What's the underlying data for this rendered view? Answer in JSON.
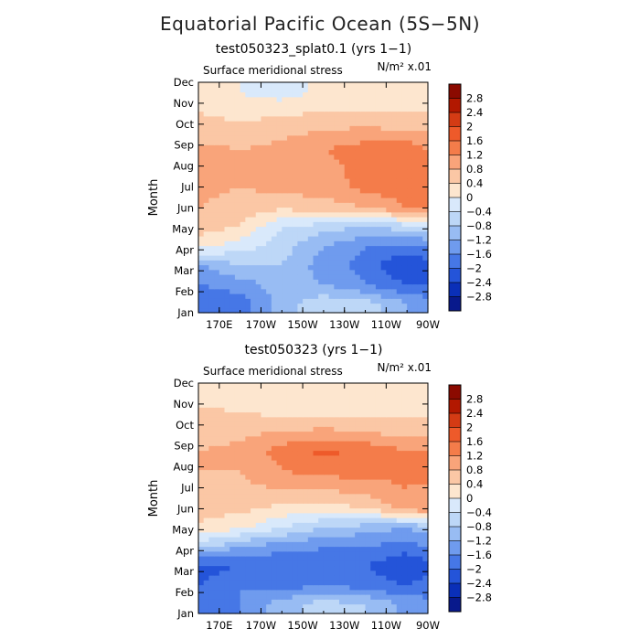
{
  "main_title": "Equatorial Pacific Ocean (5S−5N)",
  "colors": {
    "levels": [
      "#8b0a00",
      "#b21800",
      "#d43b14",
      "#ee5a2a",
      "#f47c4a",
      "#f9a47a",
      "#fbc7a5",
      "#fde6cf",
      "#d9e9fb",
      "#bdd7f7",
      "#98bcf3",
      "#6f9bee",
      "#4677e6",
      "#2454d9",
      "#0a2fb8",
      "#08198c"
    ]
  },
  "chart_data": [
    {
      "type": "heatmap",
      "title": "test050323_splat0.1 (yrs 1−1)",
      "field_label": "Surface meridional stress",
      "units_label": "N/m² x.01",
      "xlabel": "",
      "ylabel": "Month",
      "x_ticks": [
        "170E",
        "170W",
        "150W",
        "130W",
        "110W",
        "90W"
      ],
      "x_tick_lon": [
        170,
        190,
        210,
        230,
        250,
        270
      ],
      "x_range": [
        160,
        270
      ],
      "y_ticks": [
        "Jan",
        "Feb",
        "Mar",
        "Apr",
        "May",
        "Jun",
        "Jul",
        "Aug",
        "Sep",
        "Oct",
        "Nov",
        "Dec"
      ],
      "colorbar_labels": [
        "2.8",
        "2.4",
        "2",
        "1.6",
        "1.2",
        "0.8",
        "0.4",
        "0",
        "−0.4",
        "−0.8",
        "−1.2",
        "−1.6",
        "−2",
        "−2.4",
        "−2.8"
      ],
      "contour_levels": [
        -2.8,
        -2.4,
        -2,
        -1.6,
        -1.2,
        -0.8,
        -0.4,
        0,
        0.4,
        0.8,
        1.2,
        1.6,
        2,
        2.4,
        2.8
      ],
      "lon": [
        160,
        180,
        200,
        220,
        240,
        260,
        270
      ],
      "values": [
        [
          -2.0,
          -1.8,
          -1.0,
          -0.5,
          -0.6,
          -1.2,
          -1.4
        ],
        [
          -1.6,
          -1.4,
          -1.0,
          -1.2,
          -1.6,
          -2.0,
          -2.0
        ],
        [
          -1.3,
          -0.8,
          -0.8,
          -1.4,
          -1.8,
          -2.4,
          -2.2
        ],
        [
          0.2,
          -0.2,
          -0.6,
          -1.2,
          -1.6,
          -1.7,
          -1.6
        ],
        [
          0.6,
          0.4,
          -0.4,
          -0.6,
          -0.8,
          -0.6,
          -0.4
        ],
        [
          0.8,
          0.6,
          0.5,
          0.6,
          0.8,
          1.2,
          1.4
        ],
        [
          0.9,
          0.8,
          0.9,
          1.0,
          1.3,
          1.4,
          1.2
        ],
        [
          0.9,
          0.8,
          0.8,
          1.0,
          1.4,
          1.3,
          1.2
        ],
        [
          0.9,
          0.8,
          0.9,
          1.2,
          1.4,
          1.5,
          1.2
        ],
        [
          0.6,
          0.6,
          0.7,
          0.8,
          0.9,
          0.8,
          0.8
        ],
        [
          0.4,
          0.2,
          0.3,
          0.4,
          0.4,
          0.4,
          0.4
        ],
        [
          0.1,
          0.0,
          -0.2,
          0.1,
          0.3,
          0.3,
          0.2
        ]
      ]
    },
    {
      "type": "heatmap",
      "title": "test050323 (yrs 1−1)",
      "field_label": "Surface meridional stress",
      "units_label": "N/m² x.01",
      "xlabel": "",
      "ylabel": "Month",
      "x_ticks": [
        "170E",
        "170W",
        "150W",
        "130W",
        "110W",
        "90W"
      ],
      "x_tick_lon": [
        170,
        190,
        210,
        230,
        250,
        270
      ],
      "x_range": [
        160,
        270
      ],
      "y_ticks": [
        "Jan",
        "Feb",
        "Mar",
        "Apr",
        "May",
        "Jun",
        "Jul",
        "Aug",
        "Sep",
        "Oct",
        "Nov",
        "Dec"
      ],
      "colorbar_labels": [
        "2.8",
        "2.4",
        "2",
        "1.6",
        "1.2",
        "0.8",
        "0.4",
        "0",
        "−0.4",
        "−0.8",
        "−1.2",
        "−1.6",
        "−2",
        "−2.4",
        "−2.8"
      ],
      "contour_levels": [
        -2.8,
        -2.4,
        -2,
        -1.6,
        -1.2,
        -0.8,
        -0.4,
        0,
        0.4,
        0.8,
        1.2,
        1.6,
        2,
        2.4,
        2.8
      ],
      "lon": [
        160,
        180,
        200,
        220,
        240,
        260,
        270
      ],
      "values": [
        [
          -1.8,
          -1.6,
          -1.0,
          -0.6,
          -0.8,
          -1.3,
          -1.5
        ],
        [
          -2.0,
          -1.6,
          -1.8,
          -1.6,
          -1.8,
          -2.0,
          -1.8
        ],
        [
          -2.2,
          -2.0,
          -2.0,
          -1.8,
          -2.0,
          -2.4,
          -2.2
        ],
        [
          -0.6,
          -1.2,
          -1.4,
          -1.6,
          -1.6,
          -1.8,
          -1.6
        ],
        [
          0.3,
          0.1,
          -0.4,
          -0.8,
          -1.0,
          -1.2,
          -1.0
        ],
        [
          0.6,
          0.5,
          0.3,
          0.2,
          0.4,
          1.0,
          1.2
        ],
        [
          0.7,
          0.7,
          0.8,
          0.8,
          1.0,
          1.2,
          1.0
        ],
        [
          0.8,
          0.8,
          1.2,
          1.4,
          1.4,
          1.3,
          1.6
        ],
        [
          0.8,
          0.9,
          1.4,
          1.7,
          1.5,
          1.2,
          1.2
        ],
        [
          0.6,
          0.7,
          0.8,
          0.9,
          0.8,
          0.6,
          0.6
        ],
        [
          0.5,
          0.4,
          0.3,
          0.3,
          0.3,
          0.3,
          0.3
        ],
        [
          0.2,
          0.1,
          0.1,
          0.0,
          0.0,
          0.1,
          0.1
        ]
      ]
    }
  ]
}
